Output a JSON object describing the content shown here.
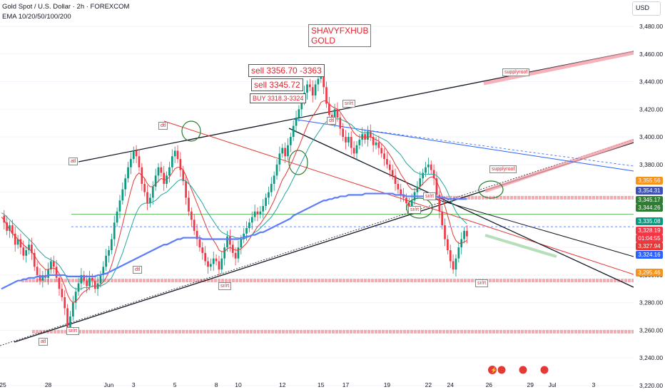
{
  "header": {
    "symbol": "Gold Spot / U.S. Dollar · 2h · FOREXCOM",
    "indicator": "EMA 10/20/50/100/200"
  },
  "currency": "USD",
  "annotations": {
    "brand_line1": "SHAVYFXHUB",
    "brand_line2": "GOLD",
    "sell1": "sell 3356.70 -3363",
    "sell2": "sell 3345.72",
    "buy": "BUY 3318.3-3324",
    "small_labels": [
      {
        "id": "atl1",
        "text": "atl"
      },
      {
        "id": "dtl",
        "text": "dtl"
      },
      {
        "id": "srrt1",
        "text": "sr/rt"
      },
      {
        "id": "srrt2",
        "text": "sr/rt"
      },
      {
        "id": "dtl2",
        "text": "dtl"
      },
      {
        "id": "srrt3",
        "text": "sr/rt"
      },
      {
        "id": "srrt4",
        "text": "sr/rt"
      },
      {
        "id": "srrt5",
        "text": "sr/rt"
      },
      {
        "id": "supplyroof1",
        "text": "supplyroof"
      },
      {
        "id": "supplyroof2",
        "text": "supplyroof"
      },
      {
        "id": "srrt6",
        "text": "sr/rt"
      },
      {
        "id": "atl2",
        "text": "atl"
      },
      {
        "id": "dtl3",
        "text": "dtl"
      }
    ]
  },
  "price_labels": [
    {
      "value": "3,355.56",
      "color": "#f7931a"
    },
    {
      "value": "3,354.31",
      "color": "#3f51b5"
    },
    {
      "value": "3,345.17",
      "color": "#2e7d32"
    },
    {
      "value": "3,344.26",
      "color": "#2e7d32"
    },
    {
      "value": "3,335.08",
      "color": "#089981"
    },
    {
      "value": "3,328.19",
      "color": "#f23645"
    },
    {
      "value": "01:04:55",
      "color": "#f23645"
    },
    {
      "value": "3,327.94",
      "color": "#e53935"
    },
    {
      "value": "3,324.16",
      "color": "#2962ff"
    },
    {
      "value": "3,295.46",
      "color": "#f7931a"
    }
  ],
  "chart_data": {
    "type": "candlestick",
    "title": "Gold Spot / U.S. Dollar · 2h · FOREXCOM",
    "y_ticks": [
      "3,480.00",
      "3,460.00",
      "3,440.00",
      "3,420.00",
      "3,400.00",
      "3,380.00",
      "3,360.00",
      "3,340.00",
      "3,320.00",
      "3,300.00",
      "3,280.00",
      "3,260.00",
      "3,240.00",
      "3,220.00"
    ],
    "y_tick_values": [
      3480,
      3460,
      3440,
      3420,
      3400,
      3380,
      3360,
      3340,
      3320,
      3300,
      3280,
      3260,
      3240,
      3220
    ],
    "ylim": [
      3220,
      3490
    ],
    "x_ticks": [
      "25",
      "28",
      "Jun",
      "3",
      "5",
      "8",
      "10",
      "12",
      "15",
      "17",
      "19",
      "22",
      "24",
      "26",
      "29",
      "Jul",
      "3"
    ],
    "x_tick_index": [
      0,
      17,
      39,
      48,
      63,
      78,
      86,
      102,
      116,
      125,
      140,
      155,
      163,
      177,
      192,
      200,
      215
    ],
    "x_count": 230,
    "close": [
      3343,
      3338,
      3332,
      3336,
      3330,
      3322,
      3326,
      3320,
      3314,
      3318,
      3322,
      3316,
      3306,
      3300,
      3296,
      3300,
      3298,
      3304,
      3310,
      3306,
      3298,
      3290,
      3284,
      3276,
      3262,
      3270,
      3280,
      3288,
      3294,
      3300,
      3296,
      3292,
      3298,
      3296,
      3290,
      3294,
      3300,
      3306,
      3314,
      3318,
      3326,
      3338,
      3346,
      3354,
      3362,
      3370,
      3378,
      3384,
      3390,
      3386,
      3378,
      3366,
      3360,
      3352,
      3356,
      3364,
      3372,
      3378,
      3374,
      3366,
      3372,
      3378,
      3386,
      3390,
      3384,
      3376,
      3368,
      3356,
      3346,
      3340,
      3332,
      3326,
      3320,
      3316,
      3310,
      3306,
      3308,
      3312,
      3310,
      3304,
      3312,
      3320,
      3328,
      3322,
      3316,
      3312,
      3320,
      3326,
      3330,
      3334,
      3338,
      3342,
      3346,
      3344,
      3346,
      3350,
      3356,
      3360,
      3366,
      3372,
      3380,
      3388,
      3392,
      3386,
      3394,
      3400,
      3408,
      3414,
      3420,
      3426,
      3432,
      3438,
      3436,
      3430,
      3438,
      3442,
      3446,
      3436,
      3424,
      3416,
      3412,
      3420,
      3414,
      3406,
      3400,
      3396,
      3400,
      3392,
      3388,
      3394,
      3398,
      3402,
      3398,
      3404,
      3400,
      3394,
      3396,
      3392,
      3388,
      3384,
      3380,
      3376,
      3372,
      3366,
      3362,
      3358,
      3356,
      3352,
      3350,
      3354,
      3360,
      3364,
      3370,
      3374,
      3378,
      3380,
      3376,
      3370,
      3358,
      3346,
      3336,
      3326,
      3318,
      3310,
      3304,
      3312,
      3320,
      3326,
      3332,
      3328
    ],
    "series": [
      {
        "name": "EMA 10",
        "color": "#e53935",
        "values": [
          3342,
          3340,
          3336,
          3333,
          3330,
          3328,
          3326,
          3324,
          3322,
          3320,
          3319,
          3317,
          3314,
          3311,
          3308,
          3306,
          3304,
          3304,
          3305,
          3305,
          3304,
          3301,
          3297,
          3292,
          3286,
          3282,
          3280,
          3281,
          3283,
          3286,
          3288,
          3289,
          3291,
          3292,
          3292,
          3292,
          3293,
          3295,
          3298,
          3302,
          3307,
          3314,
          3321,
          3329,
          3337,
          3345,
          3353,
          3361,
          3368,
          3372,
          3374,
          3372,
          3370,
          3366,
          3364,
          3364,
          3366,
          3368,
          3370,
          3369,
          3369,
          3371,
          3374,
          3377,
          3378,
          3378,
          3376,
          3372,
          3367,
          3362,
          3357,
          3352,
          3347,
          3342,
          3337,
          3332,
          3328,
          3325,
          3322,
          3318,
          3317,
          3317,
          3319,
          3320,
          3319,
          3318,
          3318,
          3319,
          3321,
          3323,
          3326,
          3329,
          3332,
          3335,
          3337,
          3340,
          3343,
          3346,
          3350,
          3354,
          3359,
          3364,
          3369,
          3372,
          3376,
          3380,
          3384,
          3389,
          3393,
          3398,
          3403,
          3408,
          3412,
          3415,
          3418,
          3421,
          3425,
          3426,
          3426,
          3424,
          3422,
          3421,
          3420,
          3418,
          3415,
          3412,
          3410,
          3406,
          3403,
          3401,
          3400,
          3400,
          3400,
          3400,
          3400,
          3399,
          3398,
          3397,
          3395,
          3393,
          3390,
          3387,
          3384,
          3380,
          3377,
          3373,
          3370,
          3367,
          3364,
          3362,
          3362,
          3362,
          3364,
          3366,
          3368,
          3370,
          3371,
          3371,
          3368,
          3363,
          3357,
          3350,
          3343,
          3336,
          3329,
          3325,
          3323,
          3323,
          3324,
          3325
        ]
      },
      {
        "name": "EMA 20",
        "color": "#26a69a",
        "values": [
          3345,
          3344,
          3342,
          3340,
          3338,
          3336,
          3334,
          3332,
          3330,
          3328,
          3326,
          3324,
          3322,
          3319,
          3317,
          3315,
          3313,
          3312,
          3311,
          3310,
          3309,
          3307,
          3304,
          3301,
          3297,
          3293,
          3291,
          3290,
          3290,
          3290,
          3291,
          3291,
          3291,
          3292,
          3292,
          3292,
          3292,
          3293,
          3294,
          3296,
          3298,
          3302,
          3306,
          3311,
          3316,
          3322,
          3328,
          3334,
          3340,
          3345,
          3349,
          3351,
          3352,
          3352,
          3352,
          3353,
          3354,
          3356,
          3358,
          3359,
          3360,
          3362,
          3364,
          3366,
          3368,
          3369,
          3369,
          3368,
          3366,
          3364,
          3361,
          3358,
          3355,
          3352,
          3348,
          3345,
          3342,
          3339,
          3336,
          3333,
          3331,
          3330,
          3329,
          3328,
          3328,
          3327,
          3327,
          3326,
          3326,
          3327,
          3328,
          3329,
          3331,
          3332,
          3334,
          3336,
          3338,
          3340,
          3342,
          3345,
          3348,
          3352,
          3355,
          3359,
          3362,
          3366,
          3370,
          3374,
          3378,
          3382,
          3386,
          3390,
          3394,
          3397,
          3400,
          3403,
          3406,
          3409,
          3411,
          3412,
          3412,
          3413,
          3413,
          3413,
          3412,
          3411,
          3410,
          3409,
          3407,
          3405,
          3404,
          3403,
          3403,
          3403,
          3403,
          3402,
          3401,
          3400,
          3399,
          3398,
          3397,
          3395,
          3393,
          3391,
          3389,
          3387,
          3384,
          3381,
          3379,
          3377,
          3375,
          3374,
          3373,
          3373,
          3373,
          3373,
          3373,
          3373,
          3372,
          3370,
          3367,
          3364,
          3360,
          3355,
          3350,
          3346,
          3343,
          3341,
          3339,
          3337
        ]
      },
      {
        "name": "EMA 200",
        "color": "#5c7cfa",
        "values": [
          3290,
          3291,
          3292,
          3293,
          3294,
          3295,
          3296,
          3296,
          3297,
          3297,
          3298,
          3298,
          3298,
          3299,
          3299,
          3299,
          3299,
          3300,
          3300,
          3300,
          3300,
          3300,
          3300,
          3300,
          3299,
          3299,
          3299,
          3299,
          3299,
          3299,
          3299,
          3299,
          3299,
          3299,
          3299,
          3300,
          3300,
          3301,
          3301,
          3302,
          3303,
          3304,
          3305,
          3306,
          3307,
          3308,
          3309,
          3310,
          3311,
          3312,
          3313,
          3314,
          3315,
          3316,
          3317,
          3318,
          3319,
          3320,
          3321,
          3322,
          3322,
          3323,
          3324,
          3325,
          3326,
          3326,
          3327,
          3327,
          3327,
          3327,
          3327,
          3327,
          3327,
          3326,
          3326,
          3326,
          3326,
          3326,
          3326,
          3326,
          3326,
          3326,
          3326,
          3326,
          3326,
          3326,
          3326,
          3327,
          3327,
          3328,
          3328,
          3329,
          3329,
          3330,
          3331,
          3331,
          3332,
          3333,
          3334,
          3335,
          3336,
          3337,
          3338,
          3339,
          3340,
          3341,
          3343,
          3344,
          3345,
          3346,
          3347,
          3348,
          3349,
          3350,
          3351,
          3352,
          3353,
          3354,
          3354,
          3355,
          3355,
          3356,
          3356,
          3357,
          3357,
          3357,
          3358,
          3358,
          3358,
          3358,
          3358,
          3358,
          3359,
          3359,
          3359,
          3359,
          3359,
          3359,
          3359,
          3359,
          3359,
          3359,
          3359,
          3358,
          3358,
          3358,
          3358,
          3357,
          3357,
          3357,
          3357,
          3357,
          3357,
          3357,
          3357,
          3357,
          3357,
          3357,
          3357,
          3356,
          3356,
          3356,
          3355,
          3355,
          3355,
          3355,
          3355,
          3355,
          3355,
          3355
        ]
      }
    ],
    "levels": [
      {
        "value": 3356,
        "color": "#f4a0a8"
      },
      {
        "value": 3344,
        "color": "#4caf50"
      },
      {
        "value": 3335,
        "color": "#5c7cfa"
      },
      {
        "value": 3296,
        "color": "#f4a0a8"
      },
      {
        "value": 3259,
        "color": "#f4a0a8"
      }
    ]
  }
}
